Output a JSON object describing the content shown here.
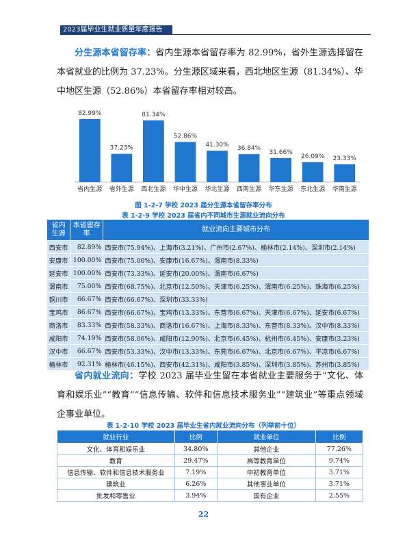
{
  "header": {
    "title": "2023届毕业生就业质量年度报告"
  },
  "paragraph1": {
    "lead": "分生源本省留存率：",
    "text": "省内生源本省留存率为 82.99%，省外生源选择留在本省就业的比例为 37.23%。分生源区域来看，西北地区生源（81.34%）、华中地区生源（52.86%）本省留存率相对较高。"
  },
  "chart_data": {
    "type": "bar",
    "color": "#1f77d0",
    "categories": [
      "省内生源",
      "省外生源",
      "西北生源",
      "华中生源",
      "华北生源",
      "西南生源",
      "华东生源",
      "东北生源",
      "华南生源"
    ],
    "values": [
      82.99,
      37.23,
      81.34,
      52.86,
      41.3,
      36.84,
      31.66,
      26.09,
      23.33
    ],
    "value_labels": [
      "82.99%",
      "37.23%",
      "81.34%",
      "52.86%",
      "41.30%",
      "36.84%",
      "31.66%",
      "26.09%",
      "23.33%"
    ],
    "caption": "图 1-2-7  学校 2023 届分生源本省留存率分布"
  },
  "table1": {
    "caption": "表 1-2-9  学校 2023 届省内不同城市生源就业流向分布",
    "header": [
      "省内生源",
      "本省留存率",
      "就业流向主要城市分布"
    ],
    "rows": [
      [
        "西安市",
        "82.89%",
        "西安市(75.94%)、上海市(3.21%)、广州市(2.67%)、榆林市(2.14%)、深圳市(2.14%)"
      ],
      [
        "安康市",
        "100.00%",
        "西安市(75.00%)、安康市(16.67%)、渭南市(8.33%)"
      ],
      [
        "延安市",
        "100.00%",
        "西安市(73.33%)、延安市(20.00%)、渭南市(6.67%)"
      ],
      [
        "渭南市",
        "75.00%",
        "西安市(68.75%)、北京市(12.50%)、天津市(6.25%)、渭南市(6.25%)、珠海市(6.25%)"
      ],
      [
        "铜川市",
        "66.67%",
        "西安市(66.67%)、深圳市(33.33%)"
      ],
      [
        "宝鸡市",
        "86.67%",
        "西安市(66.67%)、宝鸡市(13.33%)、东营市(6.67%)、天津市(6.67%)、延安市(6.67%)"
      ],
      [
        "商洛市",
        "83.33%",
        "西安市(58.33%)、商洛市(16.67%)、上海市(8.33%)、东营市(8.33%)、汉中市(8.33%)"
      ],
      [
        "咸阳市",
        "74.19%",
        "西安市(58.06%)、咸阳市(12.90%)、北京市(6.45%)、杭州市(6.45%)、安康市(3.23%)"
      ],
      [
        "汉中市",
        "66.67%",
        "西安市(53.33%)、汉中市(13.33%)、东莞市(6.67%)、北京市(6.67%)、平凉市(6.67%)"
      ],
      [
        "榆林市",
        "92.31%",
        "榆林市(46.15%)、西安市(42.31%)、咸阳市(3.85%)、深圳市(3.85%)、苏州市(3.85%)"
      ]
    ]
  },
  "paragraph2": {
    "lead": "省内就业流向：",
    "text": "学校 2023 届毕业生留在本省就业主要服务于“文化、体育和娱乐业”“教育”“信息传输、软件和信息技术服务业”“建筑业”等重点领域企事业单位。"
  },
  "table2": {
    "caption": "表 1-2-10  学校 2023 届毕业生省内就业流向分布（列举前十位）",
    "header": [
      "就业行业",
      "比例",
      "就业单位",
      "比例"
    ],
    "rows": [
      [
        "文化、体育和娱乐业",
        "34.80%",
        "其他企业",
        "77.26%"
      ],
      [
        "教育",
        "29.47%",
        "高等教育单位",
        "9.74%"
      ],
      [
        "信息传输、软件和信息技术服务业",
        "7.19%",
        "中初教育单位",
        "3.71%"
      ],
      [
        "建筑业",
        "6.26%",
        "其他事业单位",
        "3.71%"
      ],
      [
        "批发和零售业",
        "3.94%",
        "国有企业",
        "2.55%"
      ]
    ]
  },
  "footer": {
    "page": "22"
  }
}
